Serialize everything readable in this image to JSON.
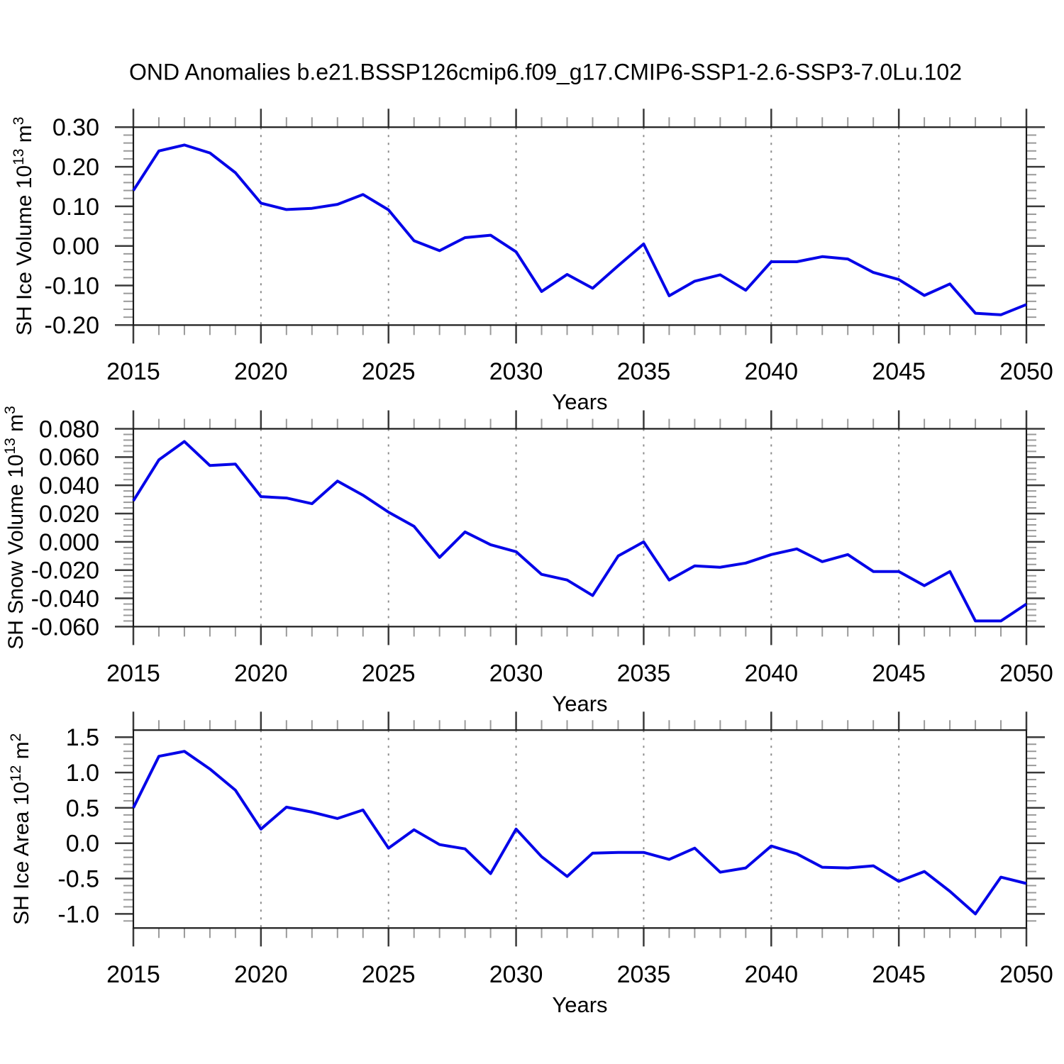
{
  "title": "OND Anomalies b.e21.BSSP126cmip6.f09_g17.CMIP6-SSP1-2.6-SSP3-7.0Lu.102",
  "style": {
    "line_color": "#0505e8",
    "axis_color": "#1a1a1a",
    "major_tick_color": "#3a3a3a",
    "minor_tick_color": "#9a9a9a",
    "grid_color": "#8c8c8c",
    "text_color": "#000000"
  },
  "chart_data": [
    {
      "id": "sh-ice-volume",
      "type": "line",
      "series_name": "SH Ice Volume OND anomaly",
      "ylabel": "SH Ice Volume 10^13 m^3",
      "ylabel_segments": [
        {
          "t": "SH Ice Volume 10"
        },
        {
          "t": "13",
          "sup": true
        },
        {
          "t": " m"
        },
        {
          "t": "3",
          "sup": true
        }
      ],
      "xlabel": "Years",
      "x": [
        2015,
        2016,
        2017,
        2018,
        2019,
        2020,
        2021,
        2022,
        2023,
        2024,
        2025,
        2026,
        2027,
        2028,
        2029,
        2030,
        2031,
        2032,
        2033,
        2034,
        2035,
        2036,
        2037,
        2038,
        2039,
        2040,
        2041,
        2042,
        2043,
        2044,
        2045,
        2046,
        2047,
        2048,
        2049,
        2050
      ],
      "values": [
        0.14,
        0.24,
        0.255,
        0.235,
        0.185,
        0.108,
        0.092,
        0.095,
        0.105,
        0.13,
        0.091,
        0.013,
        -0.012,
        0.021,
        0.027,
        -0.015,
        -0.115,
        -0.072,
        -0.107,
        -0.05,
        0.005,
        -0.126,
        -0.089,
        -0.073,
        -0.112,
        -0.04,
        -0.04,
        -0.027,
        -0.033,
        -0.067,
        -0.085,
        -0.125,
        -0.096,
        -0.17,
        -0.174,
        -0.148
      ],
      "ylim": [
        -0.2,
        0.3
      ],
      "yticks": [
        {
          "v": 0.3,
          "label": "0.30"
        },
        {
          "v": 0.2,
          "label": "0.20"
        },
        {
          "v": 0.1,
          "label": "0.10"
        },
        {
          "v": 0.0,
          "label": "0.00"
        },
        {
          "v": -0.1,
          "label": "-0.10"
        },
        {
          "v": -0.2,
          "label": "-0.20"
        }
      ],
      "yminor_step": 0.02,
      "xticks": [
        2015,
        2020,
        2025,
        2030,
        2035,
        2040,
        2045,
        2050
      ],
      "xminor_step": 1,
      "grid_years": [
        2020,
        2025,
        2030,
        2035,
        2040,
        2045
      ],
      "grid": "vertical-dashed",
      "legend": "none"
    },
    {
      "id": "sh-snow-volume",
      "type": "line",
      "series_name": "SH Snow Volume OND anomaly",
      "ylabel": "SH Snow Volume 10^13 m^3",
      "ylabel_segments": [
        {
          "t": "SH Snow Volume 10"
        },
        {
          "t": "13",
          "sup": true
        },
        {
          "t": " m"
        },
        {
          "t": "3",
          "sup": true
        }
      ],
      "xlabel": "Years",
      "x": [
        2015,
        2016,
        2017,
        2018,
        2019,
        2020,
        2021,
        2022,
        2023,
        2024,
        2025,
        2026,
        2027,
        2028,
        2029,
        2030,
        2031,
        2032,
        2033,
        2034,
        2035,
        2036,
        2037,
        2038,
        2039,
        2040,
        2041,
        2042,
        2043,
        2044,
        2045,
        2046,
        2047,
        2048,
        2049,
        2050
      ],
      "values": [
        0.029,
        0.058,
        0.071,
        0.054,
        0.055,
        0.032,
        0.031,
        0.027,
        0.043,
        0.033,
        0.021,
        0.011,
        -0.011,
        0.007,
        -0.002,
        -0.007,
        -0.023,
        -0.027,
        -0.038,
        -0.01,
        0.0,
        -0.027,
        -0.017,
        -0.018,
        -0.015,
        -0.009,
        -0.005,
        -0.014,
        -0.009,
        -0.021,
        -0.021,
        -0.031,
        -0.021,
        -0.056,
        -0.056,
        -0.044
      ],
      "ylim": [
        -0.06,
        0.08
      ],
      "yticks": [
        {
          "v": 0.08,
          "label": "0.080"
        },
        {
          "v": 0.06,
          "label": "0.060"
        },
        {
          "v": 0.04,
          "label": "0.040"
        },
        {
          "v": 0.02,
          "label": "0.020"
        },
        {
          "v": 0.0,
          "label": "0.000"
        },
        {
          "v": -0.02,
          "label": "-0.020"
        },
        {
          "v": -0.04,
          "label": "-0.040"
        },
        {
          "v": -0.06,
          "label": "-0.060"
        }
      ],
      "yminor_step": 0.004,
      "xticks": [
        2015,
        2020,
        2025,
        2030,
        2035,
        2040,
        2045,
        2050
      ],
      "xminor_step": 1,
      "grid_years": [
        2020,
        2025,
        2030,
        2035,
        2040,
        2045
      ],
      "grid": "vertical-dashed",
      "legend": "none"
    },
    {
      "id": "sh-ice-area",
      "type": "line",
      "series_name": "SH Ice Area OND anomaly",
      "ylabel": "SH Ice Area 10^12 m^2",
      "ylabel_segments": [
        {
          "t": "SH Ice Area 10"
        },
        {
          "t": "12",
          "sup": true
        },
        {
          "t": " m"
        },
        {
          "t": "2",
          "sup": true
        }
      ],
      "xlabel": "Years",
      "x": [
        2015,
        2016,
        2017,
        2018,
        2019,
        2020,
        2021,
        2022,
        2023,
        2024,
        2025,
        2026,
        2027,
        2028,
        2029,
        2030,
        2031,
        2032,
        2033,
        2034,
        2035,
        2036,
        2037,
        2038,
        2039,
        2040,
        2041,
        2042,
        2043,
        2044,
        2045,
        2046,
        2047,
        2048,
        2049,
        2050
      ],
      "values": [
        0.5,
        1.23,
        1.3,
        1.05,
        0.75,
        0.2,
        0.51,
        0.44,
        0.35,
        0.47,
        -0.07,
        0.19,
        -0.02,
        -0.08,
        -0.43,
        0.2,
        -0.19,
        -0.47,
        -0.14,
        -0.13,
        -0.13,
        -0.23,
        -0.07,
        -0.41,
        -0.35,
        -0.04,
        -0.15,
        -0.34,
        -0.35,
        -0.32,
        -0.54,
        -0.4,
        -0.68,
        -1.0,
        -0.48,
        -0.57
      ],
      "ylim": [
        -1.2,
        1.6
      ],
      "yticks": [
        {
          "v": 1.5,
          "label": "1.5"
        },
        {
          "v": 1.0,
          "label": "1.0"
        },
        {
          "v": 0.5,
          "label": "0.5"
        },
        {
          "v": 0.0,
          "label": "0.0"
        },
        {
          "v": -0.5,
          "label": "-0.5"
        },
        {
          "v": -1.0,
          "label": "-1.0"
        }
      ],
      "yminor_step": 0.1,
      "xticks": [
        2015,
        2020,
        2025,
        2030,
        2035,
        2040,
        2045,
        2050
      ],
      "xminor_step": 1,
      "grid_years": [
        2020,
        2025,
        2030,
        2035,
        2040,
        2045
      ],
      "grid": "vertical-dashed",
      "legend": "none"
    }
  ]
}
